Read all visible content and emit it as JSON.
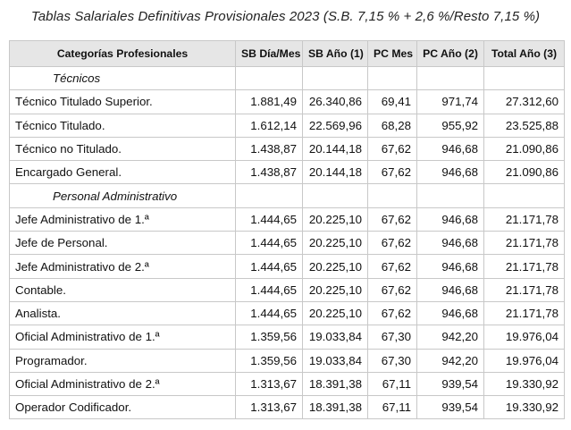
{
  "caption": "Tablas Salariales Definitivas Provisionales 2023 (S.B. 7,15 % + 2,6 %/Resto 7,15 %)",
  "headers": [
    "Categorías Profesionales",
    "SB Día/Mes",
    "SB Año (1)",
    "PC Mes",
    "PC Año (2)",
    "Total Año (3)"
  ],
  "sections": [
    {
      "title": "Técnicos",
      "rows": [
        [
          "Técnico Titulado Superior.",
          "1.881,49",
          "26.340,86",
          "69,41",
          "971,74",
          "27.312,60"
        ],
        [
          "Técnico Titulado.",
          "1.612,14",
          "22.569,96",
          "68,28",
          "955,92",
          "23.525,88"
        ],
        [
          "Técnico no Titulado.",
          "1.438,87",
          "20.144,18",
          "67,62",
          "946,68",
          "21.090,86"
        ],
        [
          "Encargado General.",
          "1.438,87",
          "20.144,18",
          "67,62",
          "946,68",
          "21.090,86"
        ]
      ]
    },
    {
      "title": "Personal Administrativo",
      "rows": [
        [
          "Jefe Administrativo de 1.ª",
          "1.444,65",
          "20.225,10",
          "67,62",
          "946,68",
          "21.171,78"
        ],
        [
          "Jefe de Personal.",
          "1.444,65",
          "20.225,10",
          "67,62",
          "946,68",
          "21.171,78"
        ],
        [
          "Jefe Administrativo de 2.ª",
          "1.444,65",
          "20.225,10",
          "67,62",
          "946,68",
          "21.171,78"
        ],
        [
          "Contable.",
          "1.444,65",
          "20.225,10",
          "67,62",
          "946,68",
          "21.171,78"
        ],
        [
          "Analista.",
          "1.444,65",
          "20.225,10",
          "67,62",
          "946,68",
          "21.171,78"
        ],
        [
          "Oficial Administrativo de 1.ª",
          "1.359,56",
          "19.033,84",
          "67,30",
          "942,20",
          "19.976,04"
        ],
        [
          "Programador.",
          "1.359,56",
          "19.033,84",
          "67,30",
          "942,20",
          "19.976,04"
        ],
        [
          "Oficial Administrativo de 2.ª",
          "1.313,67",
          "18.391,38",
          "67,11",
          "939,54",
          "19.330,92"
        ],
        [
          "Operador Codificador.",
          "1.313,67",
          "18.391,38",
          "67,11",
          "939,54",
          "19.330,92"
        ]
      ]
    }
  ]
}
